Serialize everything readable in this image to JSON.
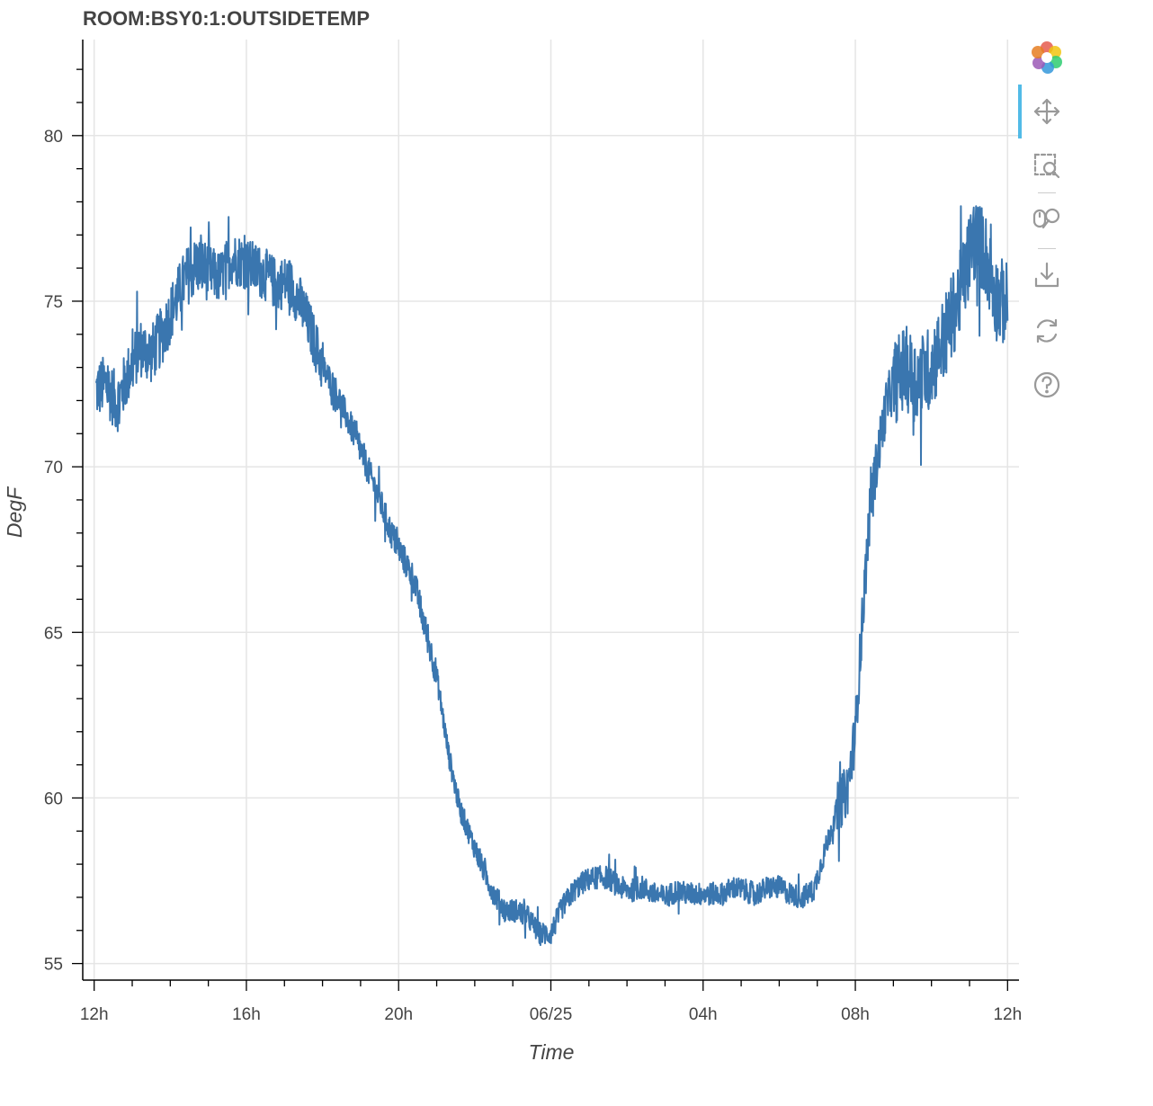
{
  "chart_data": {
    "type": "line",
    "title": "ROOM:BSY0:1:OUTSIDETEMP",
    "xlabel": "Time",
    "ylabel": "DegF",
    "x_unit": "hours since 12h on 06/24",
    "xlim": [
      -0.3,
      24.3
    ],
    "ylim": [
      54.5,
      82.9
    ],
    "x_ticks": [
      {
        "value": 0,
        "label": "12h"
      },
      {
        "value": 4,
        "label": "16h"
      },
      {
        "value": 8,
        "label": "20h"
      },
      {
        "value": 12,
        "label": "06/25"
      },
      {
        "value": 16,
        "label": "04h"
      },
      {
        "value": 20,
        "label": "08h"
      },
      {
        "value": 24,
        "label": "12h"
      }
    ],
    "y_ticks": [
      {
        "value": 55,
        "label": "55"
      },
      {
        "value": 60,
        "label": "60"
      },
      {
        "value": 65,
        "label": "65"
      },
      {
        "value": 70,
        "label": "70"
      },
      {
        "value": 75,
        "label": "75"
      },
      {
        "value": 80,
        "label": "80"
      }
    ],
    "grid": true,
    "series": [
      {
        "name": "ROOM:BSY0:1:OUTSIDETEMP",
        "color": "#3a76af",
        "x": [
          0.05,
          0.3,
          0.6,
          0.9,
          1.2,
          1.5,
          1.8,
          2.1,
          2.4,
          2.7,
          3.0,
          3.3,
          3.6,
          3.9,
          4.2,
          4.5,
          4.8,
          5.1,
          5.4,
          5.7,
          6.0,
          6.3,
          6.6,
          6.9,
          7.2,
          7.5,
          7.8,
          8.1,
          8.4,
          8.7,
          9.0,
          9.3,
          9.6,
          9.9,
          10.2,
          10.5,
          10.8,
          11.1,
          11.4,
          11.7,
          12.0,
          12.3,
          12.6,
          12.9,
          13.2,
          13.5,
          13.8,
          14.1,
          14.4,
          14.7,
          15.0,
          15.3,
          15.6,
          15.9,
          16.2,
          16.5,
          16.8,
          17.1,
          17.4,
          17.7,
          18.0,
          18.3,
          18.6,
          18.9,
          19.2,
          19.5,
          19.8,
          20.0,
          20.2,
          20.4,
          20.6,
          20.8,
          21.0,
          21.3,
          21.6,
          21.9,
          22.2,
          22.5,
          22.8,
          23.1,
          23.4,
          23.7,
          24.0
        ],
        "values": [
          72.3,
          72.5,
          71.9,
          72.8,
          73.6,
          73.4,
          74.0,
          74.9,
          75.7,
          76.1,
          75.9,
          75.7,
          76.3,
          76.2,
          76.0,
          75.8,
          75.5,
          75.6,
          75.0,
          74.1,
          73.0,
          72.4,
          71.6,
          70.8,
          69.9,
          69.0,
          68.0,
          67.3,
          66.6,
          65.1,
          63.7,
          61.4,
          59.7,
          58.8,
          57.9,
          57.1,
          56.6,
          56.6,
          56.4,
          55.9,
          55.9,
          56.7,
          57.2,
          57.5,
          57.6,
          57.6,
          57.3,
          57.2,
          57.3,
          57.1,
          57.0,
          57.2,
          57.1,
          57.1,
          57.1,
          57.1,
          57.3,
          57.2,
          57.1,
          57.3,
          57.3,
          57.1,
          57.0,
          57.2,
          58.4,
          59.6,
          60.3,
          62.0,
          65.7,
          68.9,
          70.4,
          71.8,
          72.5,
          73.0,
          72.6,
          72.9,
          73.5,
          74.4,
          75.4,
          76.9,
          76.5,
          75.1,
          74.9
        ]
      }
    ]
  },
  "toolbar": {
    "tools": [
      "bokeh-logo-icon",
      "pan-icon",
      "box-zoom-icon",
      "wheel-zoom-icon",
      "save-icon",
      "reset-icon",
      "help-icon"
    ]
  }
}
